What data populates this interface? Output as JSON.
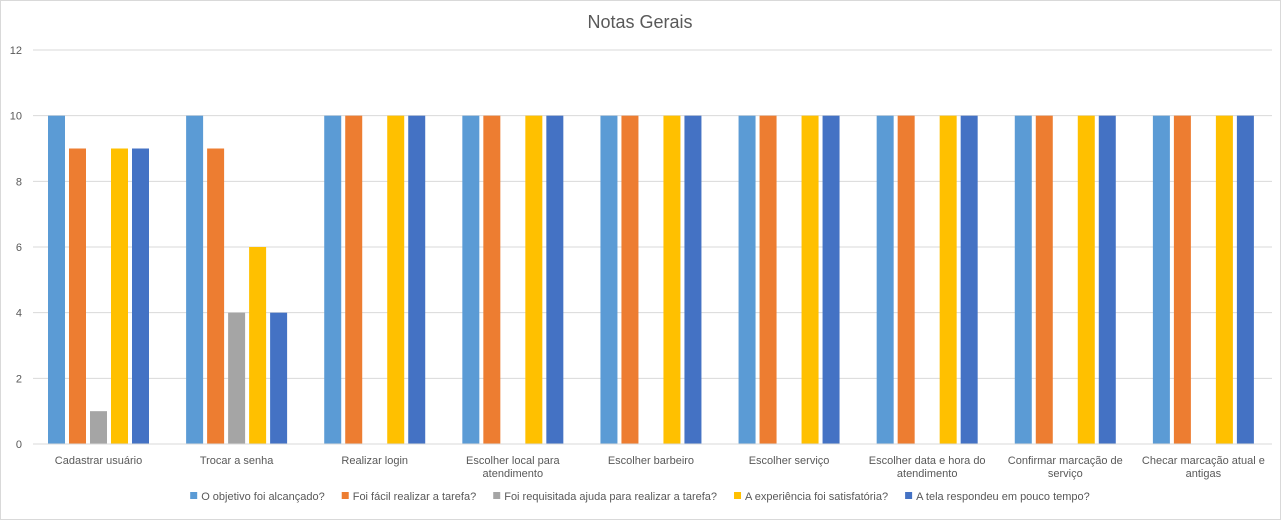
{
  "chart_data": {
    "type": "bar",
    "title": "Notas Gerais",
    "xlabel": "",
    "ylabel": "",
    "ylim": [
      0,
      12
    ],
    "yticks": [
      0,
      2,
      4,
      6,
      8,
      10,
      12
    ],
    "grid": true,
    "legend_position": "bottom",
    "categories": [
      [
        "Cadastrar usuário"
      ],
      [
        "Trocar a senha"
      ],
      [
        "Realizar login"
      ],
      [
        "Escolher local para",
        "atendimento"
      ],
      [
        "Escolher barbeiro"
      ],
      [
        "Escolher serviço"
      ],
      [
        "Escolher data e hora do",
        "atendimento"
      ],
      [
        "Confirmar marcação de",
        "serviço"
      ],
      [
        "Checar marcação atual e",
        "antigas"
      ]
    ],
    "series": [
      {
        "name": "O objetivo foi alcançado?",
        "color": "#5B9BD5",
        "values": [
          10,
          10,
          10,
          10,
          10,
          10,
          10,
          10,
          10
        ]
      },
      {
        "name": "Foi fácil realizar a tarefa?",
        "color": "#ED7D31",
        "values": [
          9,
          9,
          10,
          10,
          10,
          10,
          10,
          10,
          10
        ]
      },
      {
        "name": "Foi requisitada ajuda para realizar a tarefa?",
        "color": "#A5A5A5",
        "values": [
          1,
          4,
          0,
          0,
          0,
          0,
          0,
          0,
          0
        ]
      },
      {
        "name": "A experiência foi satisfatória?",
        "color": "#FFC000",
        "values": [
          9,
          6,
          10,
          10,
          10,
          10,
          10,
          10,
          10
        ]
      },
      {
        "name": "A tela respondeu em pouco tempo?",
        "color": "#4472C4",
        "values": [
          9,
          4,
          10,
          10,
          10,
          10,
          10,
          10,
          10
        ]
      }
    ]
  }
}
